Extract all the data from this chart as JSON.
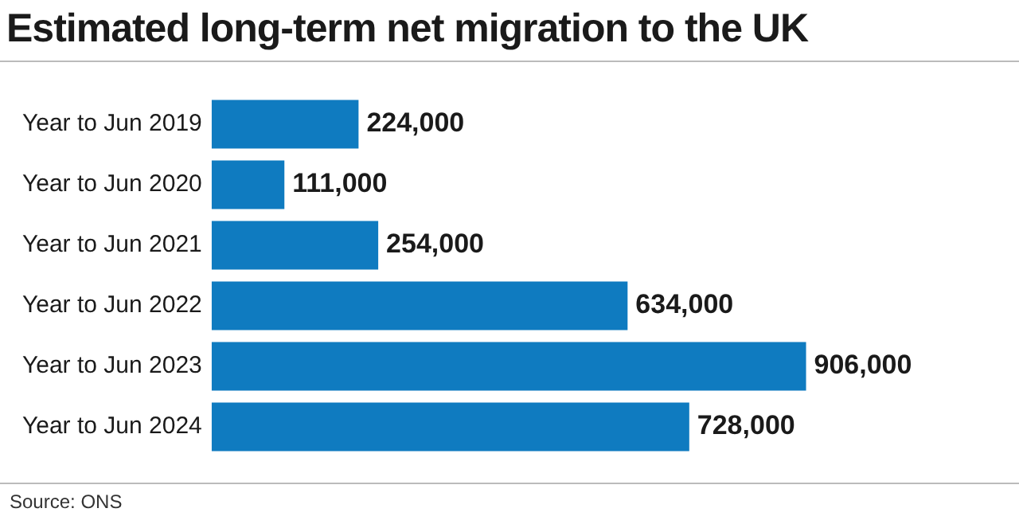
{
  "chart_data": {
    "type": "bar",
    "orientation": "horizontal",
    "title": "Estimated long-term net migration to the UK",
    "categories": [
      "Year to Jun 2019",
      "Year to Jun 2020",
      "Year to Jun 2021",
      "Year to Jun 2022",
      "Year to Jun 2023",
      "Year to Jun 2024"
    ],
    "values": [
      224000,
      111000,
      254000,
      634000,
      906000,
      728000
    ],
    "value_labels": [
      "224,000",
      "111,000",
      "254,000",
      "634,000",
      "906,000",
      "728,000"
    ],
    "color": "#0f7bc0",
    "legend": false,
    "tick_labels": "y",
    "annotations": [
      "Source: ONS"
    ]
  }
}
